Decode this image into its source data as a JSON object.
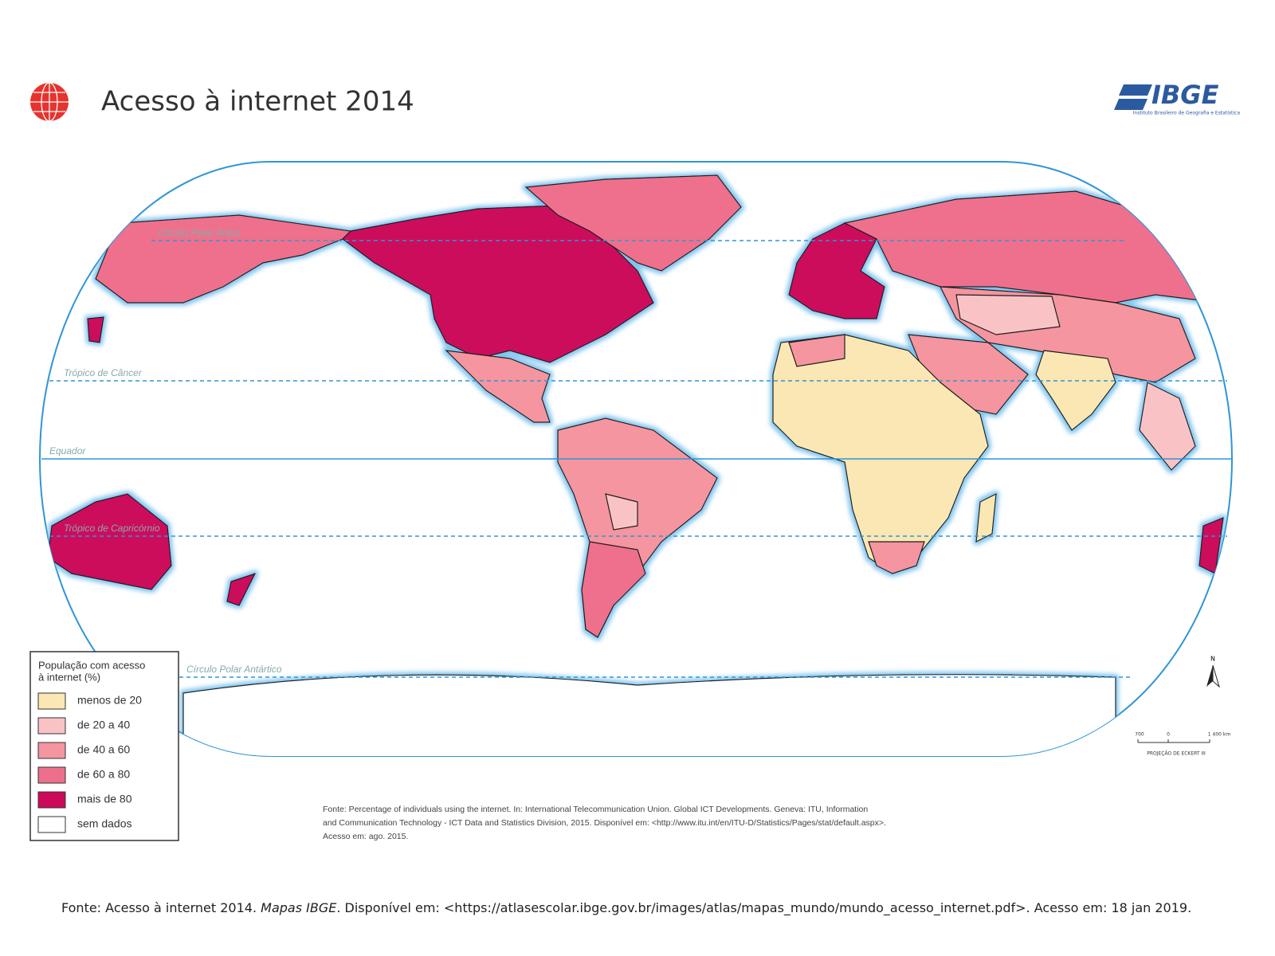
{
  "header": {
    "title": "Acesso à internet 2014",
    "logo": "IBGE",
    "logo_subtitle": "Instituto Brasileiro de Geografia e Estatística"
  },
  "map": {
    "lines": [
      "Círculo Polar Ártico",
      "Trópico de Câncer",
      "Equador",
      "Trópico de Capricórnio",
      "Círculo Polar Antártico"
    ],
    "north": "N",
    "scale": [
      "700",
      "0",
      "1 400 km"
    ],
    "projection": "PROJEÇÃO DE ECKERT III"
  },
  "legend": {
    "title": [
      "População com acesso",
      "à internet (%)"
    ],
    "items": [
      {
        "label": "menos de 20",
        "color": "#fbe7b3"
      },
      {
        "label": "de 20 a 40",
        "color": "#f9c3c6"
      },
      {
        "label": "de 40 a 60",
        "color": "#f4959f"
      },
      {
        "label": "de 60 a 80",
        "color": "#ee6f8c"
      },
      {
        "label": "mais de 80",
        "color": "#cc0a5c"
      },
      {
        "label": "sem dados",
        "color": "#ffffff"
      }
    ]
  },
  "source": [
    "Fonte: Percentage of individuals using the internet. In: International Telecommunication Union. Global ICT Developments. Geneva: ITU, Information",
    "and Communication Technology - ICT Data and Statistics Division, 2015. Disponível em: <http://www.itu.int/en/ITU-D/Statistics/Pages/stat/default.aspx>.",
    "Acesso em: ago. 2015."
  ],
  "footer": {
    "before": "Fonte: Acesso à internet 2014. ",
    "italic": "Mapas IBGE",
    "after": ". Disponível em: <https://atlasescolar.ibge.gov.br/images/atlas/mapas_mundo/mundo_acesso_internet.pdf>. Acesso em: 18 jan 2019."
  }
}
